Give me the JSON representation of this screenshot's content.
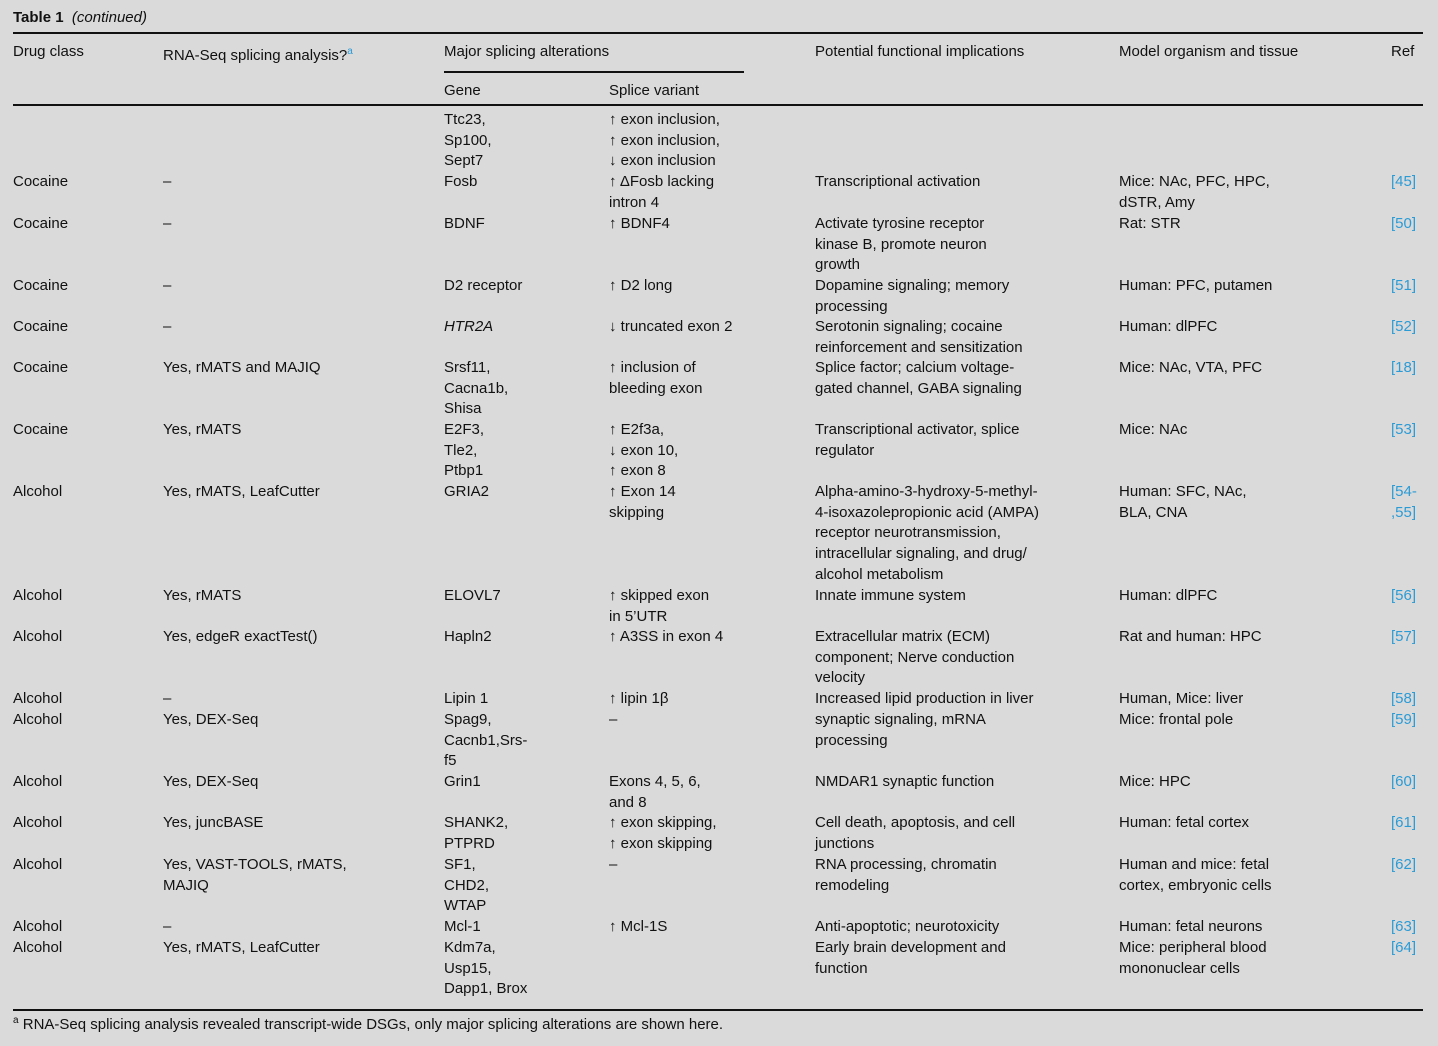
{
  "table": {
    "label": "Table 1",
    "continued": "(continued)",
    "headers": {
      "drug_class": "Drug class",
      "rnaseq": "RNA-Seq splicing analysis?",
      "rnaseq_note_mark": "a",
      "major": "Major splicing alterations",
      "gene": "Gene",
      "splice_variant": "Splice variant",
      "implications": "Potential functional implications",
      "model": "Model organism and tissue",
      "ref": "Ref"
    },
    "colors": {
      "link": "#2b9bd6",
      "background": "#dadada"
    },
    "rows": [
      {
        "drug": "",
        "rnaseq": "",
        "gene": "Ttc23,\nSp100,\nSept7",
        "variant": "↑ exon inclusion,\n↑ exon inclusion,\n↓ exon inclusion",
        "impl": "",
        "model": "",
        "ref": ""
      },
      {
        "drug": "Cocaine",
        "rnaseq": "–",
        "gene": "Fosb",
        "variant": "↑ ΔFosb lacking\nintron 4",
        "impl": "Transcriptional activation",
        "model": "Mice: NAc, PFC, HPC,\ndSTR, Amy",
        "ref": "[45]"
      },
      {
        "drug": "Cocaine",
        "rnaseq": "–",
        "gene": "BDNF",
        "variant": "↑ BDNF4",
        "impl": "Activate tyrosine receptor\nkinase B, promote neuron\ngrowth",
        "model": "Rat: STR",
        "ref": "[50]"
      },
      {
        "drug": "Cocaine",
        "rnaseq": "–",
        "gene": "D2 receptor",
        "variant": "↑ D2 long",
        "impl": "Dopamine signaling; memory\nprocessing",
        "model": "Human: PFC, putamen",
        "ref": "[51]"
      },
      {
        "drug": "Cocaine",
        "rnaseq": "–",
        "gene": "HTR2A",
        "gene_italic": true,
        "variant": "↓ truncated exon 2",
        "impl": "Serotonin signaling; cocaine\nreinforcement and sensitization",
        "model": "Human: dlPFC",
        "ref": "[52]"
      },
      {
        "drug": "Cocaine",
        "rnaseq": "Yes, rMATS and MAJIQ",
        "gene": "Srsf11,\nCacna1b,\nShisa",
        "variant": "↑ inclusion of\nbleeding exon",
        "impl": "Splice factor; calcium voltage-\ngated channel, GABA signaling",
        "model": "Mice: NAc, VTA, PFC",
        "ref": "[18]"
      },
      {
        "drug": "Cocaine",
        "rnaseq": "Yes, rMATS",
        "gene": "E2F3,\nTle2,\nPtbp1",
        "variant": "↑ E2f3a,\n↓ exon 10,\n↑ exon 8",
        "impl": "Transcriptional activator, splice\nregulator",
        "model": "Mice: NAc",
        "ref": "[53]"
      },
      {
        "drug": "Alcohol",
        "rnaseq": "Yes, rMATS, LeafCutter",
        "gene": "GRIA2",
        "variant": "↑ Exon 14\nskipping",
        "impl": "Alpha-amino-3-hydroxy-5-methyl-\n4-isoxazolepropionic acid (AMPA)\nreceptor neurotransmission,\nintracellular signaling, and drug/\nalcohol metabolism",
        "model": "Human: SFC, NAc,\nBLA, CNA",
        "ref": "[54-\n,55]"
      },
      {
        "drug": "Alcohol",
        "rnaseq": "Yes, rMATS",
        "gene": "ELOVL7",
        "variant": "↑ skipped exon\nin 5’UTR",
        "impl": "Innate immune system",
        "model": "Human: dlPFC",
        "ref": "[56]"
      },
      {
        "drug": "Alcohol",
        "rnaseq": "Yes, edgeR exactTest()",
        "gene": "Hapln2",
        "variant": "↑ A3SS in exon 4",
        "impl": "Extracellular matrix (ECM)\ncomponent; Nerve conduction\nvelocity",
        "model": "Rat and human: HPC",
        "ref": "[57]"
      },
      {
        "drug": "Alcohol",
        "rnaseq": "–",
        "gene": "Lipin 1",
        "variant": "↑ lipin 1β",
        "impl": "Increased lipid production in liver",
        "model": "Human, Mice: liver",
        "ref": "[58]"
      },
      {
        "drug": "Alcohol",
        "rnaseq": "Yes, DEX-Seq",
        "gene": "Spag9,\nCacnb1,Srs-\nf5",
        "variant": "–",
        "impl": "synaptic signaling, mRNA\nprocessing",
        "model": "Mice: frontal pole",
        "ref": "[59]"
      },
      {
        "drug": "Alcohol",
        "rnaseq": "Yes, DEX-Seq",
        "gene": "Grin1",
        "variant": "Exons 4, 5, 6,\nand 8",
        "impl": "NMDAR1 synaptic function",
        "model": "Mice: HPC",
        "ref": "[60]"
      },
      {
        "drug": "Alcohol",
        "rnaseq": "Yes, juncBASE",
        "gene": "SHANK2,\nPTPRD",
        "variant": "↑ exon skipping,\n↑ exon skipping",
        "impl": "Cell death, apoptosis, and cell\njunctions",
        "model": "Human: fetal cortex",
        "ref": "[61]"
      },
      {
        "drug": "Alcohol",
        "rnaseq": "Yes, VAST-TOOLS, rMATS,\nMAJIQ",
        "gene": "SF1,\nCHD2,\nWTAP",
        "variant": "–",
        "impl": "RNA processing, chromatin\nremodeling",
        "model": "Human and mice: fetal\ncortex, embryonic cells",
        "ref": "[62]"
      },
      {
        "drug": "Alcohol",
        "rnaseq": "–",
        "gene": "Mcl-1",
        "variant": "↑ Mcl-1S",
        "impl": "Anti-apoptotic; neurotoxicity",
        "model": "Human: fetal neurons",
        "ref": "[63]"
      },
      {
        "drug": "Alcohol",
        "rnaseq": "Yes, rMATS, LeafCutter",
        "gene": "Kdm7a,\nUsp15,\nDapp1, Brox",
        "variant": "",
        "impl": "Early brain development and\nfunction",
        "model": "Mice: peripheral blood\nmononuclear cells",
        "ref": "[64]"
      }
    ],
    "footnote_mark": "a",
    "footnote": "RNA-Seq splicing analysis revealed transcript-wide DSGs, only major splicing alterations are shown here."
  }
}
